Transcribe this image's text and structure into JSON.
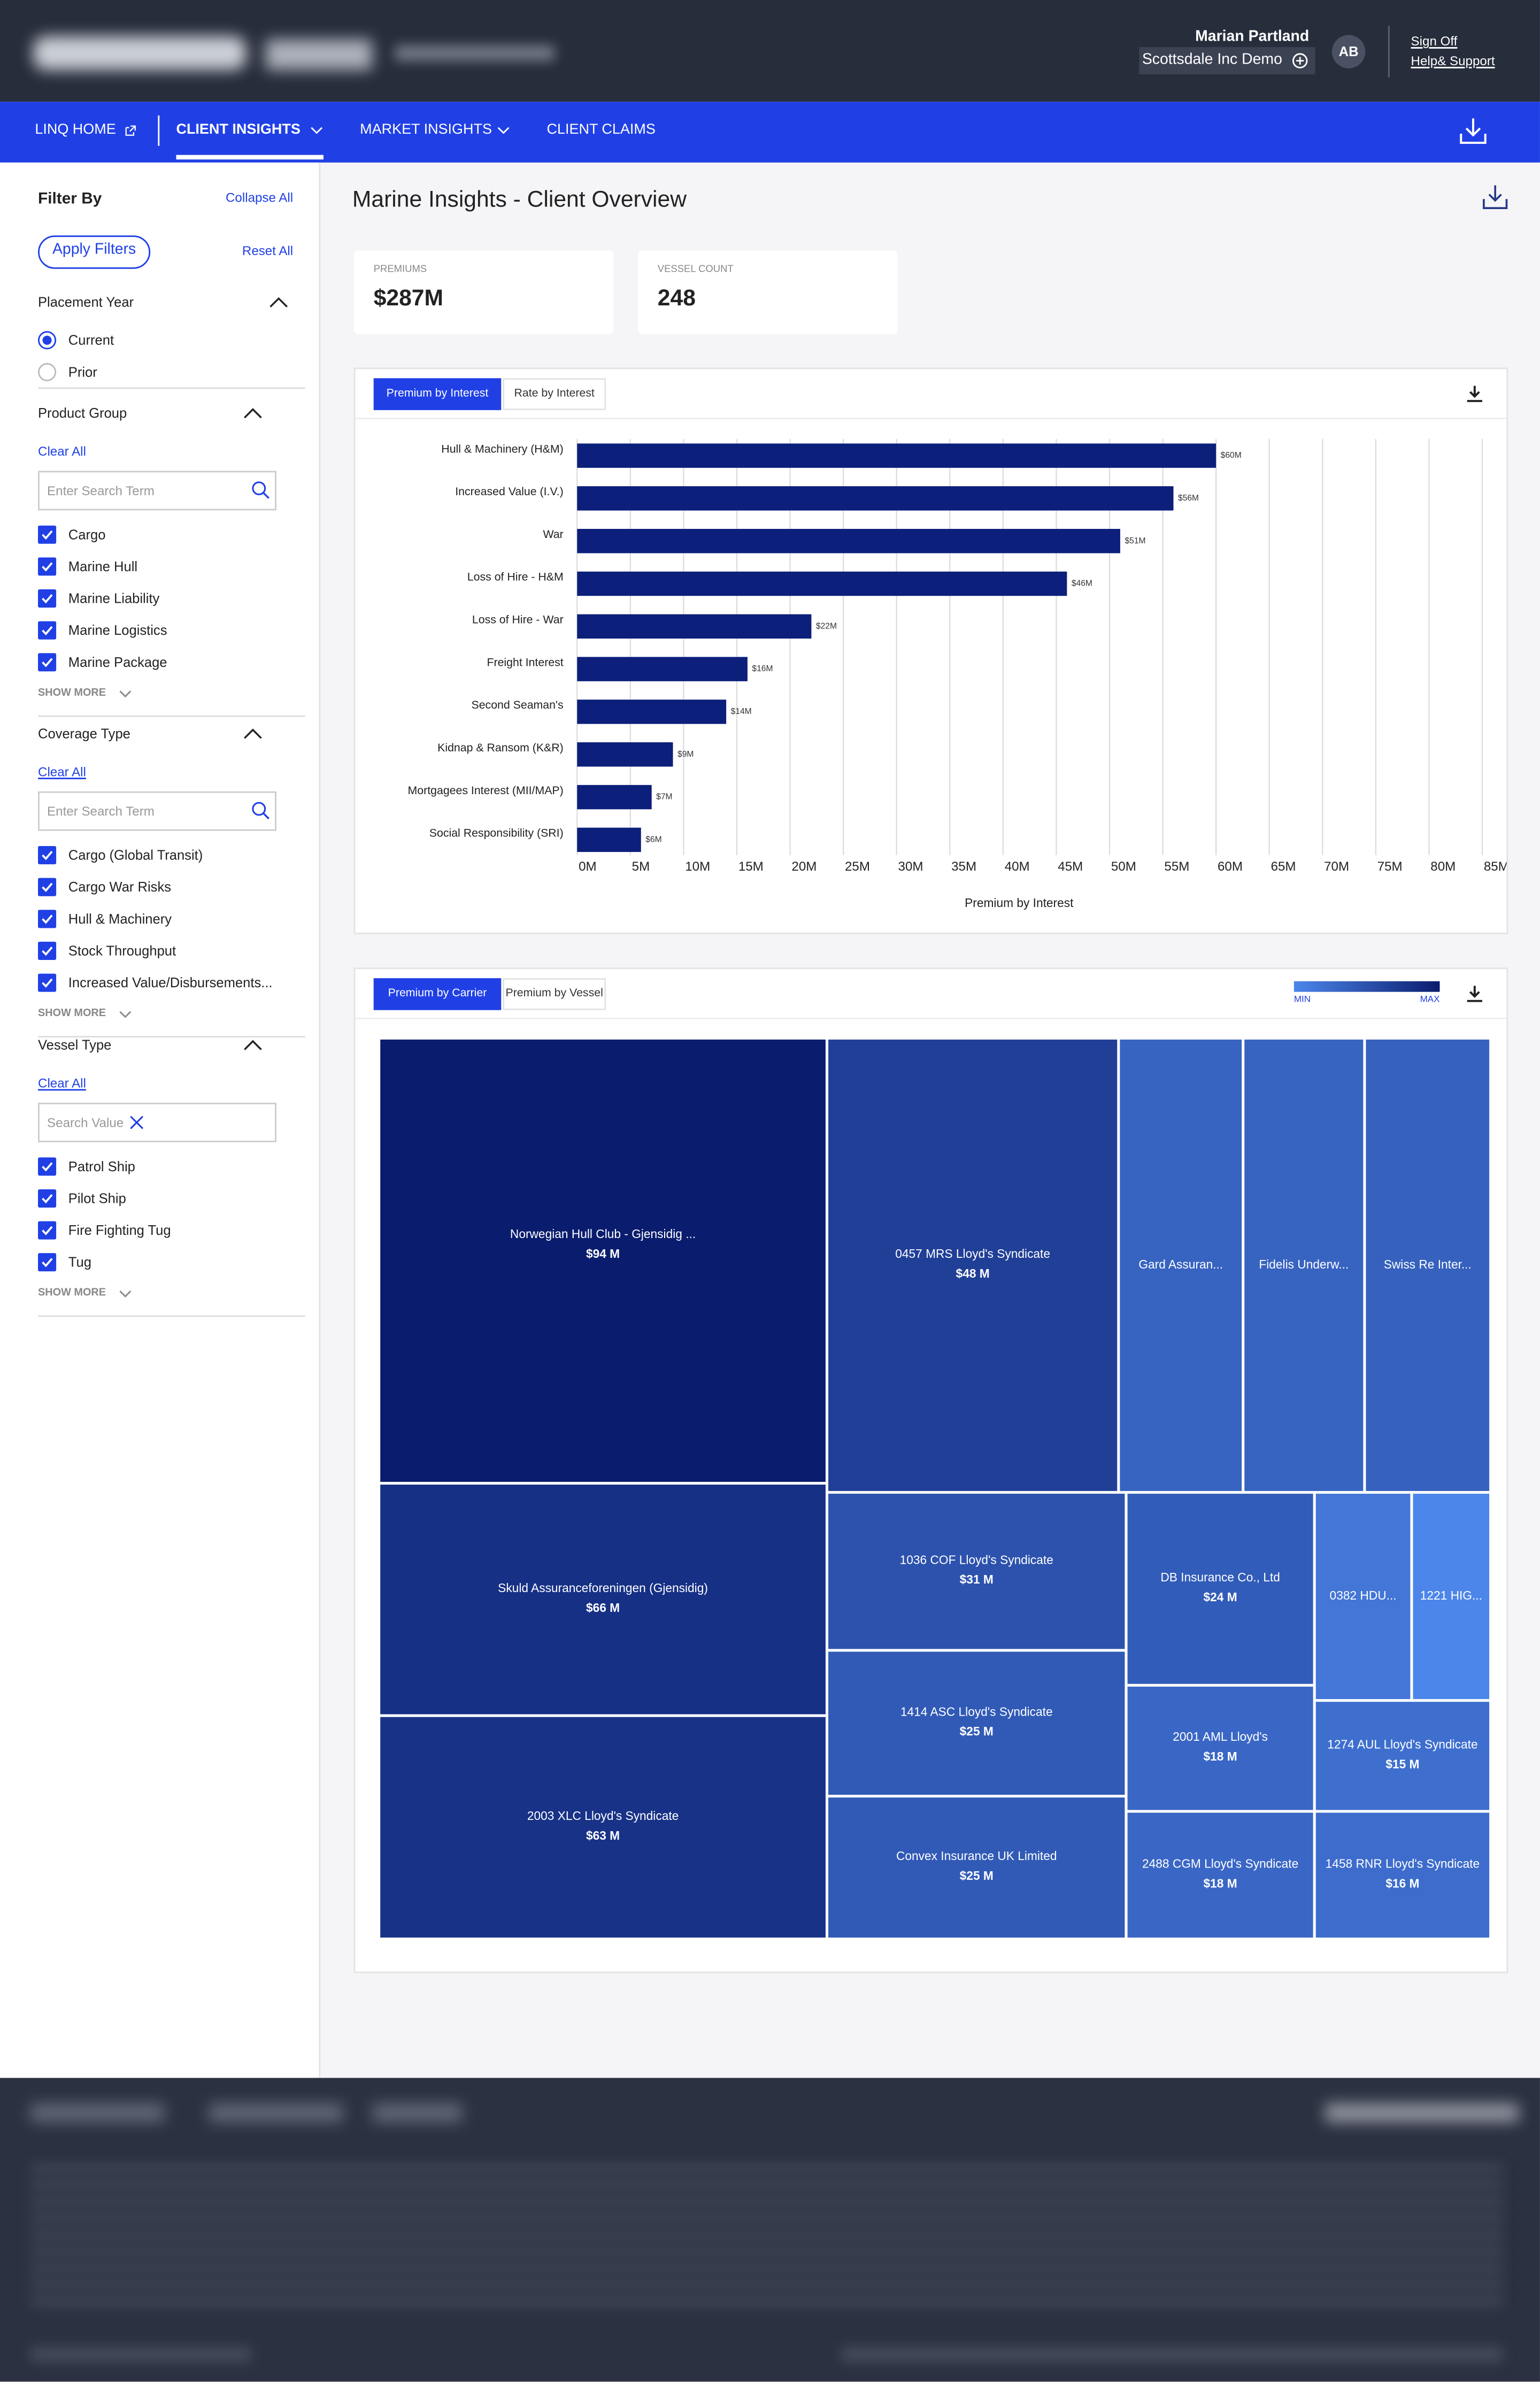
{
  "header": {
    "user_name": "Marian Partland",
    "account": "Scottsdale Inc Demo",
    "initials": "AB",
    "sign_off": "Sign Off",
    "help": "Help& Support"
  },
  "nav": {
    "items": [
      "LINQ HOME",
      "CLIENT INSIGHTS",
      "MARKET INSIGHTS",
      "CLIENT CLAIMS"
    ]
  },
  "sidebar": {
    "title": "Filter By",
    "collapse_all": "Collapse All",
    "apply": "Apply Filters",
    "reset_all": "Reset All",
    "placement_year": {
      "label": "Placement Year",
      "options": [
        "Current",
        "Prior"
      ]
    },
    "groups": [
      {
        "label": "Product Group",
        "clear": "Clear All",
        "search": "Enter Search Term",
        "items": [
          "Cargo",
          "Marine Hull",
          "Marine Liability",
          "Marine Logistics",
          "Marine Package"
        ],
        "show_more": "SHOW MORE"
      },
      {
        "label": "Coverage Type",
        "clear": "Clear All",
        "search": "Enter Search Term",
        "items": [
          "Cargo (Global Transit)",
          "Cargo War Risks",
          "Hull & Machinery",
          "Stock Throughput",
          "Increased Value/Disbursements..."
        ],
        "show_more": "SHOW MORE"
      },
      {
        "label": "Vessel Type",
        "clear": "Clear All",
        "search": "Search Value",
        "search_clear": true,
        "items": [
          "Patrol Ship",
          "Pilot Ship",
          "Fire Fighting Tug",
          "Tug"
        ],
        "show_more": "SHOW MORE"
      }
    ]
  },
  "page": {
    "title": "Marine Insights - Client Overview",
    "kpis": [
      {
        "label": "PREMIUMS",
        "value": "$287M"
      },
      {
        "label": "VESSEL COUNT",
        "value": 248
      }
    ]
  },
  "chart_data": [
    {
      "type": "bar",
      "orientation": "horizontal",
      "tabs": [
        "Premium by Interest",
        "Rate by Interest"
      ],
      "xlabel": "Premium by Interest",
      "color": "#0c1f7a",
      "grid": true,
      "categories": [
        "Hull & Machinery (H&M)",
        "Increased Value (I.V.)",
        "War",
        "Loss of Hire - H&M",
        "Loss of Hire - War",
        "Freight Interest",
        "Second Seaman's",
        "Kidnap & Ransom (K&R)",
        "Mortgagees Interest (MII/MAP)",
        "Social Responsibility (SRI)"
      ],
      "values": [
        60,
        56,
        51,
        46,
        22,
        16,
        14,
        9,
        7,
        6
      ],
      "value_labels": [
        "$60M",
        "$56M",
        "$51M",
        "$46M",
        "$22M",
        "$16M",
        "$14M",
        "$9M",
        "$7M",
        "$6M"
      ],
      "xlim": [
        0,
        85
      ],
      "xticks": [
        {
          "value": 0,
          "label": "0M"
        },
        {
          "value": 5,
          "label": "5M"
        },
        {
          "value": 10,
          "label": "10M"
        },
        {
          "value": 15,
          "label": "15M"
        },
        {
          "value": 20,
          "label": "20M"
        },
        {
          "value": 25,
          "label": "25M"
        },
        {
          "value": 30,
          "label": "30M"
        },
        {
          "value": 35,
          "label": "35M"
        },
        {
          "value": 40,
          "label": "40M"
        },
        {
          "value": 45,
          "label": "45M"
        },
        {
          "value": 50,
          "label": "50M"
        },
        {
          "value": 55,
          "label": "55M"
        },
        {
          "value": 60,
          "label": "60M"
        },
        {
          "value": 65,
          "label": "65M"
        },
        {
          "value": 70,
          "label": "70M"
        },
        {
          "value": 75,
          "label": "75M"
        },
        {
          "value": 80,
          "label": "80M"
        },
        {
          "value": 85,
          "label": "85M"
        }
      ]
    },
    {
      "type": "treemap",
      "tabs": [
        "Premium by Carrier",
        "Premium by Vessel"
      ],
      "legend": {
        "min": "MIN",
        "max": "MAX"
      },
      "colorscale": [
        "#4d86ea",
        "#0a1c6e"
      ],
      "categories": [
        "Norwegian Hull Club - Gjensidig ...",
        "Skuld Assuranceforeningen (Gjensidig)",
        "2003 XLC Lloyd's Syndicate",
        "0457 MRS Lloyd's Syndicate",
        "Gard Assuran...",
        "Fidelis Underw...",
        "Swiss Re Inter...",
        "1036 COF Lloyd's Syndicate",
        "1414 ASC Lloyd's Syndicate",
        "Convex Insurance UK Limited",
        "DB Insurance Co., Ltd",
        "2001 AML Lloyd's",
        "2488 CGM Lloyd's Syndicate",
        "0382 HDU...",
        "1221 HIG...",
        "1274 AUL Lloyd's Syndicate",
        "1458 RNR Lloyd's Syndicate"
      ],
      "values": [
        94,
        66,
        63,
        48,
        20,
        20,
        21,
        31,
        25,
        25,
        24,
        18,
        18,
        13,
        11,
        15,
        16
      ],
      "value_labels": [
        "$94 M",
        "$66 M",
        "$63 M",
        "$48 M",
        null,
        null,
        null,
        "$31 M",
        "$25 M",
        "$25 M",
        "$24 M",
        "$18 M",
        "$18 M",
        null,
        null,
        "$15 M",
        "$16 M"
      ]
    }
  ]
}
